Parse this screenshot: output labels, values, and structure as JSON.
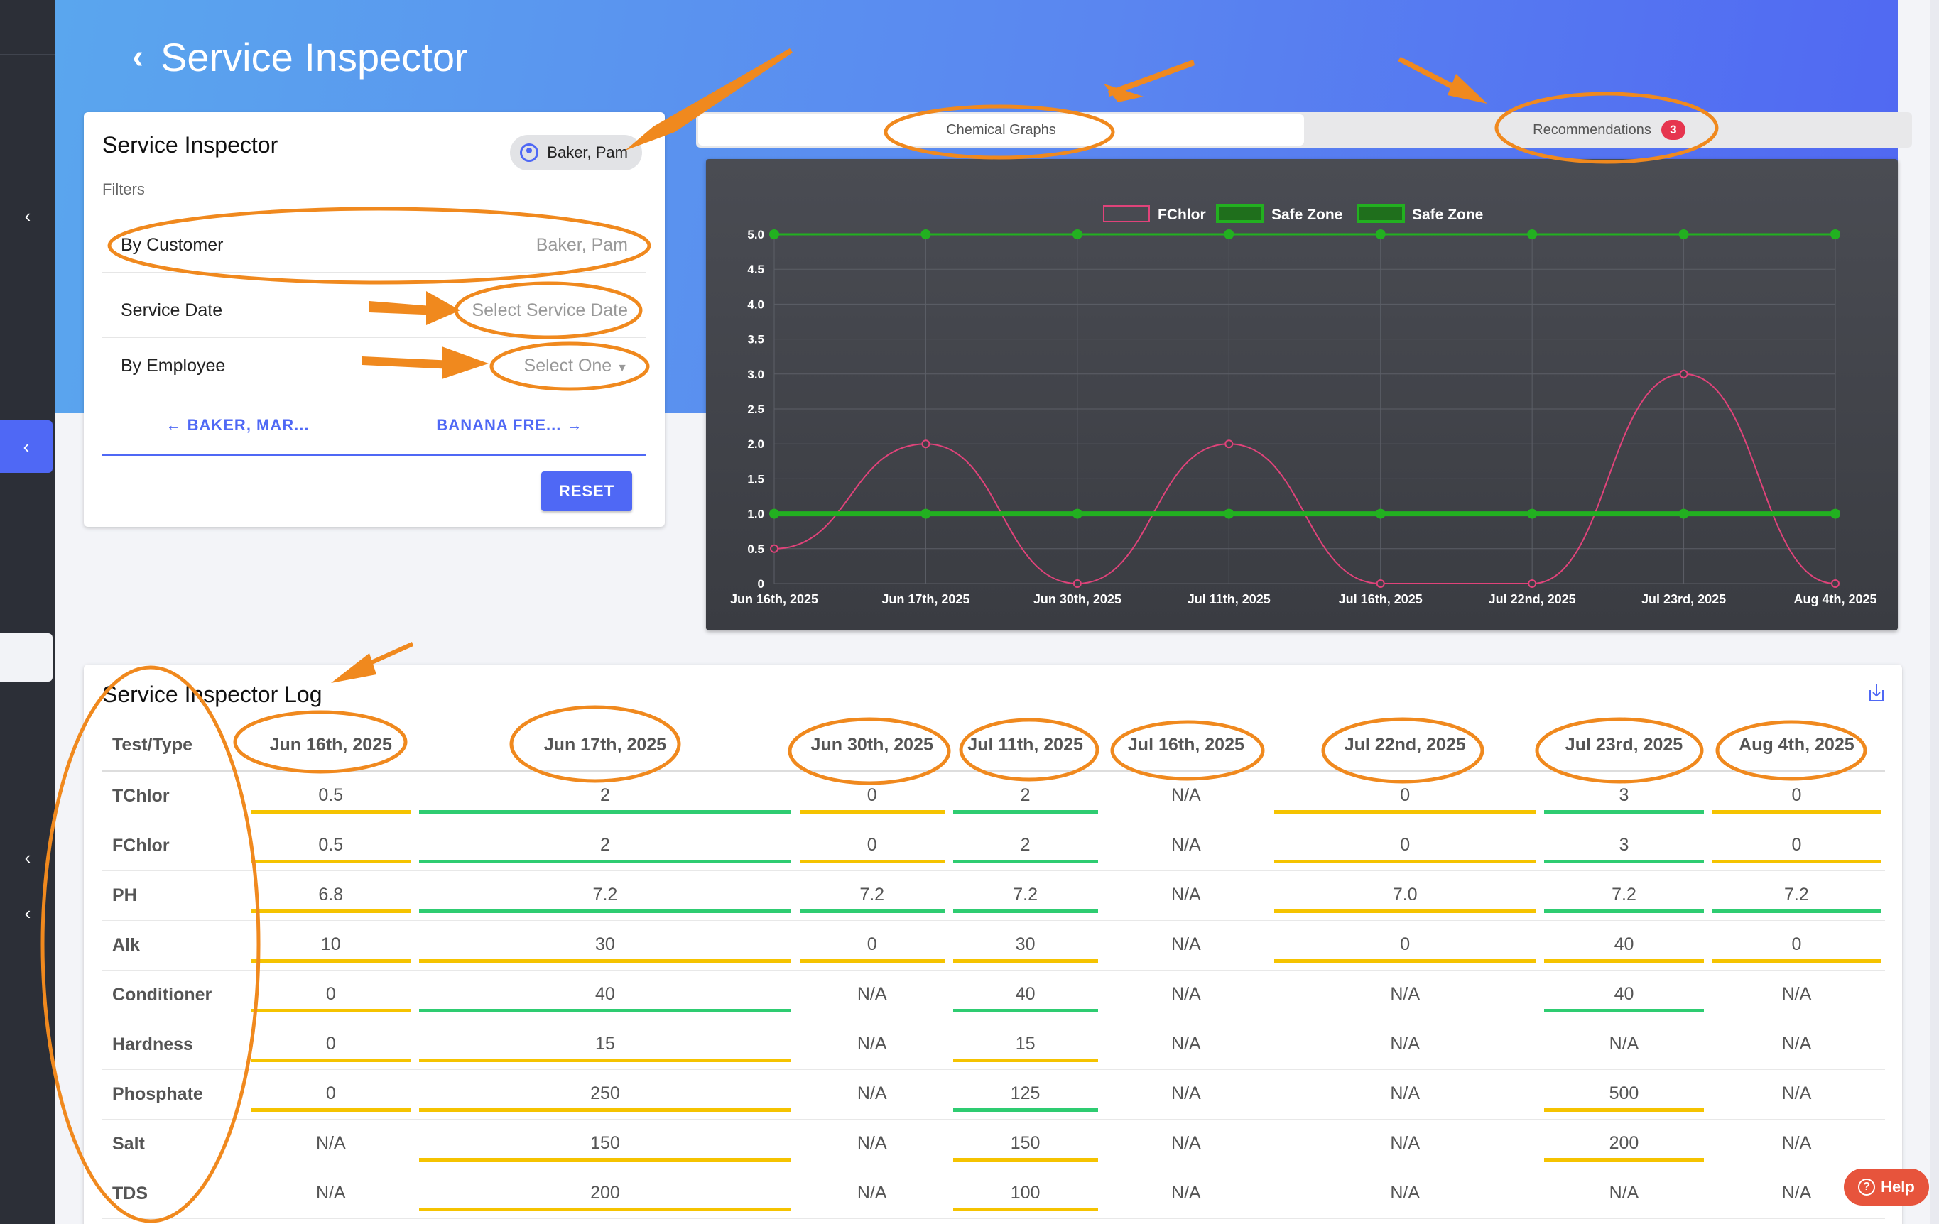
{
  "page": {
    "title": "Service Inspector"
  },
  "filter_card": {
    "title": "Service Inspector",
    "user_chip": "Baker, Pam",
    "filters_label": "Filters",
    "rows": [
      {
        "label": "By Customer",
        "value": "Baker, Pam"
      },
      {
        "label": "Service Date",
        "value": "Select Service Date"
      },
      {
        "label": "By Employee",
        "value": "Select One"
      }
    ],
    "prev_customer": "BAKER, MAR...",
    "next_customer": "BANANA FRE...",
    "reset_label": "RESET"
  },
  "tabs": [
    {
      "label": "Chemical Graphs",
      "active": true
    },
    {
      "label": "Recommendations",
      "badge": "3"
    }
  ],
  "chart_data": {
    "type": "line",
    "categories": [
      "Jun 16th, 2025",
      "Jun 17th, 2025",
      "Jun 30th, 2025",
      "Jul 11th, 2025",
      "Jul 16th, 2025",
      "Jul 22nd, 2025",
      "Jul 23rd, 2025",
      "Aug 4th, 2025"
    ],
    "series": [
      {
        "name": "FChlor",
        "color": "#e0437a",
        "values": [
          0.5,
          2,
          0,
          2,
          0,
          0,
          3,
          0
        ]
      },
      {
        "name": "Safe Zone",
        "color": "#22b020",
        "values": [
          5,
          5,
          5,
          5,
          5,
          5,
          5,
          5
        ]
      },
      {
        "name": "Safe Zone",
        "color": "#22b020",
        "values": [
          1,
          1,
          1,
          1,
          1,
          1,
          1,
          1
        ]
      }
    ],
    "ylim": [
      0,
      5
    ],
    "yticks": [
      "0",
      "0.5",
      "1.0",
      "1.5",
      "2.0",
      "2.5",
      "3.0",
      "3.5",
      "4.0",
      "4.5",
      "5.0"
    ],
    "grid": true,
    "legend": "top-center"
  },
  "log": {
    "title": "Service Inspector Log",
    "columns": [
      "Test/Type",
      "Jun 16th, 2025",
      "Jun 17th, 2025",
      "Jun 30th, 2025",
      "Jul 11th, 2025",
      "Jul 16th, 2025",
      "Jul 22nd, 2025",
      "Jul 23rd, 2025",
      "Aug 4th, 2025"
    ],
    "rows": [
      {
        "name": "TChlor",
        "cells": [
          [
            "0.5",
            "y"
          ],
          [
            "2",
            "g"
          ],
          [
            "0",
            "y"
          ],
          [
            "2",
            "g"
          ],
          [
            "N/A",
            ""
          ],
          [
            "0",
            "y"
          ],
          [
            "3",
            "g"
          ],
          [
            "0",
            "y"
          ]
        ]
      },
      {
        "name": "FChlor",
        "cells": [
          [
            "0.5",
            "y"
          ],
          [
            "2",
            "g"
          ],
          [
            "0",
            "y"
          ],
          [
            "2",
            "g"
          ],
          [
            "N/A",
            ""
          ],
          [
            "0",
            "y"
          ],
          [
            "3",
            "g"
          ],
          [
            "0",
            "y"
          ]
        ]
      },
      {
        "name": "PH",
        "cells": [
          [
            "6.8",
            "y"
          ],
          [
            "7.2",
            "g"
          ],
          [
            "7.2",
            "g"
          ],
          [
            "7.2",
            "g"
          ],
          [
            "N/A",
            ""
          ],
          [
            "7.0",
            "y"
          ],
          [
            "7.2",
            "g"
          ],
          [
            "7.2",
            "g"
          ]
        ]
      },
      {
        "name": "Alk",
        "cells": [
          [
            "10",
            "y"
          ],
          [
            "30",
            "y"
          ],
          [
            "0",
            "y"
          ],
          [
            "30",
            "y"
          ],
          [
            "N/A",
            ""
          ],
          [
            "0",
            "y"
          ],
          [
            "40",
            "y"
          ],
          [
            "0",
            "y"
          ]
        ]
      },
      {
        "name": "Conditioner",
        "cells": [
          [
            "0",
            "y"
          ],
          [
            "40",
            "g"
          ],
          [
            "N/A",
            ""
          ],
          [
            "40",
            "g"
          ],
          [
            "N/A",
            ""
          ],
          [
            "N/A",
            ""
          ],
          [
            "40",
            "g"
          ],
          [
            "N/A",
            ""
          ]
        ]
      },
      {
        "name": "Hardness",
        "cells": [
          [
            "0",
            "y"
          ],
          [
            "15",
            "y"
          ],
          [
            "N/A",
            ""
          ],
          [
            "15",
            "y"
          ],
          [
            "N/A",
            ""
          ],
          [
            "N/A",
            ""
          ],
          [
            "N/A",
            ""
          ],
          [
            "N/A",
            ""
          ]
        ]
      },
      {
        "name": "Phosphate",
        "cells": [
          [
            "0",
            "y"
          ],
          [
            "250",
            "y"
          ],
          [
            "N/A",
            ""
          ],
          [
            "125",
            "g"
          ],
          [
            "N/A",
            ""
          ],
          [
            "N/A",
            ""
          ],
          [
            "500",
            "y"
          ],
          [
            "N/A",
            ""
          ]
        ]
      },
      {
        "name": "Salt",
        "cells": [
          [
            "N/A",
            ""
          ],
          [
            "150",
            "y"
          ],
          [
            "N/A",
            ""
          ],
          [
            "150",
            "y"
          ],
          [
            "N/A",
            ""
          ],
          [
            "N/A",
            ""
          ],
          [
            "200",
            "y"
          ],
          [
            "N/A",
            ""
          ]
        ]
      },
      {
        "name": "TDS",
        "cells": [
          [
            "N/A",
            ""
          ],
          [
            "200",
            "y"
          ],
          [
            "N/A",
            ""
          ],
          [
            "100",
            "y"
          ],
          [
            "N/A",
            ""
          ],
          [
            "N/A",
            ""
          ],
          [
            "N/A",
            ""
          ],
          [
            "N/A",
            ""
          ]
        ]
      }
    ]
  },
  "help_label": "Help",
  "colors": {
    "accent": "#4f68f5",
    "annotation": "#f0891e",
    "badge": "#e6354f",
    "good": "#2ecc71",
    "warn": "#f5c300"
  }
}
